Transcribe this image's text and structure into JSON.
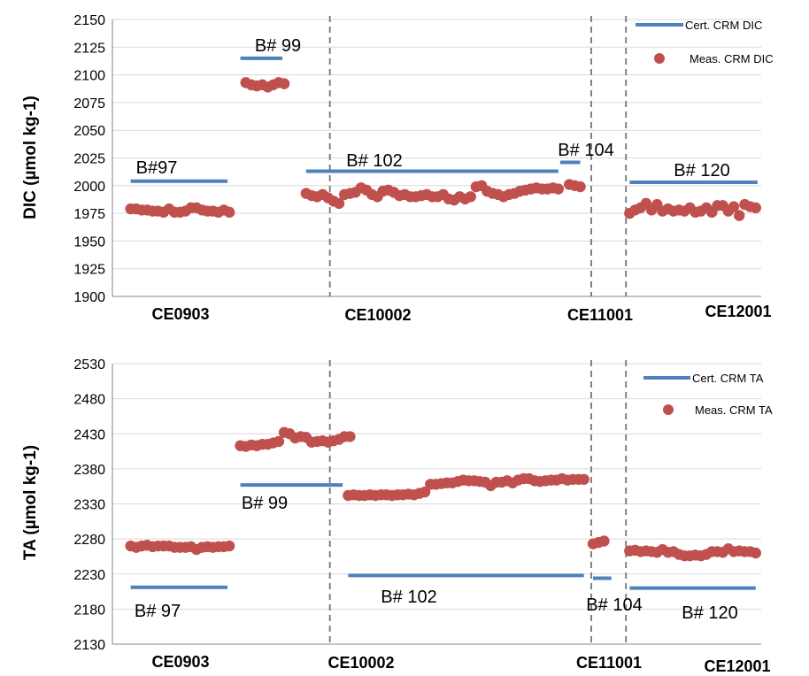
{
  "chart_data": [
    {
      "type": "scatter",
      "ylabel": "DIC  (µmol kg-1)",
      "ylim": [
        1900,
        2150
      ],
      "yticks": [
        1900,
        1925,
        1950,
        1975,
        2000,
        2025,
        2050,
        2075,
        2100,
        2125,
        2150
      ],
      "grid": true,
      "legend_position": "top-right",
      "colors": {
        "cert": "#4F81BD",
        "meas": "#C0504D",
        "divider": "#808080",
        "grid": "#D9D9D9"
      },
      "legend": {
        "cert": "Cert. CRM DIC",
        "meas": "Meas. CRM DIC"
      },
      "section_labels": [
        "CE0903",
        "CE10002",
        "CE11001",
        "CE12001"
      ],
      "dividers_x": [
        109,
        252,
        271
      ],
      "certified": [
        {
          "label": "B#97",
          "x_start": 0,
          "x_end": 53,
          "value": 2004
        },
        {
          "label": "B# 99",
          "x_start": 60,
          "x_end": 83,
          "value": 2115
        },
        {
          "label": "B# 102",
          "x_start": 96,
          "x_end": 234,
          "value": 2013
        },
        {
          "label": "B# 104",
          "x_start": 235,
          "x_end": 246,
          "value": 2021
        },
        {
          "label": "B# 120",
          "x_start": 273,
          "x_end": 343,
          "value": 2003
        }
      ],
      "series": [
        {
          "x": [
            0,
            3,
            6,
            9,
            12,
            15,
            18,
            21,
            24,
            27,
            30,
            33,
            36,
            39,
            42,
            45,
            48,
            51,
            54
          ],
          "y": [
            1979,
            1979,
            1978,
            1978,
            1977,
            1977,
            1976,
            1979,
            1976,
            1976,
            1977,
            1980,
            1980,
            1978,
            1977,
            1977,
            1976,
            1978,
            1976
          ]
        },
        {
          "x": [
            63,
            66,
            69,
            72,
            75,
            78,
            81,
            84
          ],
          "y": [
            2093,
            2091,
            2090,
            2091,
            2089,
            2091,
            2093,
            2092
          ]
        },
        {
          "x": [
            96,
            99,
            102,
            105,
            108,
            111,
            114,
            117,
            120,
            123,
            126,
            129,
            132,
            135,
            138,
            141,
            144,
            147,
            150,
            153,
            156,
            159,
            162,
            165,
            168,
            171,
            174,
            177,
            180,
            183,
            186,
            189,
            192,
            195,
            198,
            201,
            204,
            207,
            210,
            213,
            216,
            219,
            222,
            225,
            228,
            231,
            234
          ],
          "y": [
            1993,
            1991,
            1990,
            1992,
            1989,
            1986,
            1984,
            1992,
            1993,
            1994,
            1998,
            1996,
            1992,
            1990,
            1995,
            1996,
            1994,
            1991,
            1992,
            1990,
            1990,
            1991,
            1992,
            1990,
            1990,
            1992,
            1988,
            1987,
            1990,
            1988,
            1990,
            1999,
            2000,
            1995,
            1993,
            1992,
            1990,
            1992,
            1993,
            1995,
            1996,
            1997,
            1998,
            1997,
            1997,
            1998,
            1997
          ]
        },
        {
          "x": [
            240,
            243,
            246
          ],
          "y": [
            2001,
            2000,
            1999
          ]
        },
        {
          "x": [
            273,
            276,
            279,
            282,
            285,
            288,
            291,
            294,
            297,
            300,
            303,
            306,
            309,
            312,
            315,
            318,
            321,
            324,
            327,
            330,
            333,
            336,
            339,
            342
          ],
          "y": [
            1975,
            1978,
            1980,
            1984,
            1978,
            1983,
            1977,
            1979,
            1977,
            1978,
            1977,
            1980,
            1976,
            1977,
            1980,
            1976,
            1982,
            1982,
            1977,
            1981,
            1973,
            1983,
            1981,
            1980
          ]
        }
      ]
    },
    {
      "type": "scatter",
      "ylabel": "TA (µmol kg-1)",
      "ylim": [
        2130,
        2530
      ],
      "yticks": [
        2130,
        2180,
        2230,
        2280,
        2330,
        2380,
        2430,
        2480,
        2530
      ],
      "grid": true,
      "legend_position": "top-right",
      "colors": {
        "cert": "#4F81BD",
        "meas": "#C0504D",
        "divider": "#808080",
        "grid": "#D9D9D9"
      },
      "legend": {
        "cert": "Cert. CRM TA",
        "meas": "Meas. CRM TA"
      },
      "section_labels": [
        "CE0903",
        "CE10002",
        "CE11001",
        "CE12001"
      ],
      "dividers_x": [
        109,
        252,
        271
      ],
      "certified": [
        {
          "label": "B# 97",
          "x_start": 0,
          "x_end": 53,
          "value": 2211
        },
        {
          "label": "B# 99",
          "x_start": 60,
          "x_end": 116,
          "value": 2357
        },
        {
          "label": "B# 102",
          "x_start": 119,
          "x_end": 248,
          "value": 2228
        },
        {
          "label": "B# 104",
          "x_start": 253,
          "x_end": 263,
          "value": 2224
        },
        {
          "label": "B# 120",
          "x_start": 273,
          "x_end": 342,
          "value": 2210
        }
      ],
      "series": [
        {
          "x": [
            0,
            3,
            6,
            9,
            12,
            15,
            18,
            21,
            24,
            27,
            30,
            33,
            36,
            39,
            42,
            45,
            48,
            51,
            54
          ],
          "y": [
            2270,
            2268,
            2270,
            2271,
            2269,
            2270,
            2270,
            2270,
            2268,
            2268,
            2268,
            2269,
            2265,
            2268,
            2269,
            2268,
            2269,
            2269,
            2270
          ]
        },
        {
          "x": [
            60,
            63,
            66,
            69,
            72,
            75,
            78,
            81
          ],
          "y": [
            2413,
            2412,
            2414,
            2413,
            2415,
            2415,
            2417,
            2419
          ]
        },
        {
          "x": [
            84,
            87,
            90,
            93,
            96,
            99,
            102,
            105,
            108,
            111,
            114,
            117,
            120
          ],
          "y": [
            2432,
            2430,
            2424,
            2426,
            2425,
            2418,
            2419,
            2420,
            2418,
            2420,
            2422,
            2426,
            2426
          ]
        },
        {
          "x": [
            119,
            122,
            125,
            128,
            131,
            134,
            137,
            140,
            143,
            146,
            149,
            152,
            155,
            158,
            161,
            164,
            167,
            170,
            173,
            176,
            179,
            182,
            185,
            188,
            191,
            194,
            197,
            200,
            203,
            206,
            209,
            212,
            215,
            218,
            221,
            224,
            227,
            230,
            233,
            236,
            239,
            242,
            245,
            248
          ],
          "y": [
            2342,
            2343,
            2342,
            2342,
            2343,
            2342,
            2343,
            2343,
            2342,
            2343,
            2343,
            2344,
            2343,
            2345,
            2347,
            2358,
            2358,
            2359,
            2360,
            2360,
            2362,
            2364,
            2363,
            2363,
            2362,
            2361,
            2356,
            2361,
            2361,
            2363,
            2360,
            2364,
            2366,
            2366,
            2363,
            2362,
            2363,
            2364,
            2364,
            2366,
            2364,
            2365,
            2365,
            2365
          ]
        },
        {
          "x": [
            253,
            256,
            259
          ],
          "y": [
            2273,
            2275,
            2277
          ]
        },
        {
          "x": [
            273,
            276,
            279,
            282,
            285,
            288,
            291,
            294,
            297,
            300,
            303,
            306,
            309,
            312,
            315,
            318,
            321,
            324,
            327,
            330,
            333,
            336,
            339,
            342
          ],
          "y": [
            2263,
            2264,
            2262,
            2263,
            2262,
            2261,
            2265,
            2261,
            2262,
            2258,
            2256,
            2256,
            2257,
            2256,
            2258,
            2262,
            2262,
            2261,
            2266,
            2262,
            2263,
            2262,
            2262,
            2260
          ]
        }
      ]
    }
  ]
}
